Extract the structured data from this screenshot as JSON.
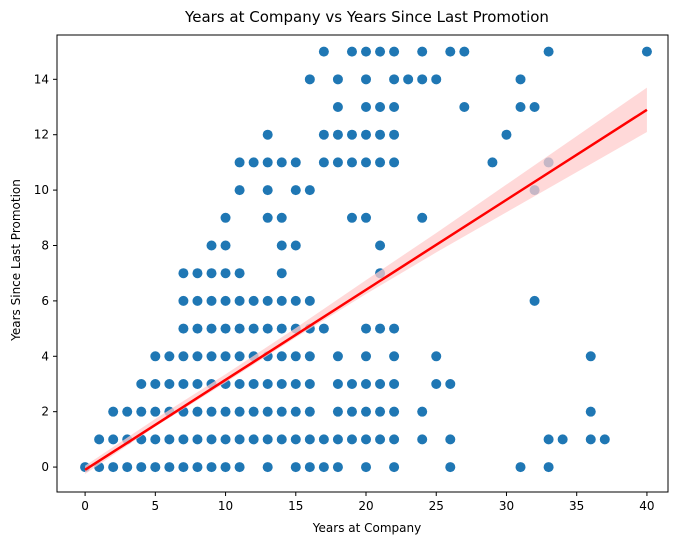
{
  "chart_data": {
    "type": "scatter",
    "title": "Years at Company vs Years Since Last Promotion",
    "xlabel": "Years at Company",
    "ylabel": "Years Since Last Promotion",
    "xlim": [
      -2,
      41.5
    ],
    "ylim": [
      -0.9,
      15.6
    ],
    "xticks": [
      0,
      5,
      10,
      15,
      20,
      25,
      30,
      35,
      40
    ],
    "yticks": [
      0,
      2,
      4,
      6,
      8,
      10,
      12,
      14
    ],
    "grid": false,
    "colors": {
      "points": "#1f77b4",
      "regression_line": "#ff0000",
      "confidence_band": "#ffcccc"
    },
    "points": [
      [
        0,
        0
      ],
      [
        1,
        0
      ],
      [
        2,
        0
      ],
      [
        3,
        0
      ],
      [
        4,
        0
      ],
      [
        5,
        0
      ],
      [
        6,
        0
      ],
      [
        7,
        0
      ],
      [
        8,
        0
      ],
      [
        9,
        0
      ],
      [
        10,
        0
      ],
      [
        11,
        0
      ],
      [
        13,
        0
      ],
      [
        15,
        0
      ],
      [
        16,
        0
      ],
      [
        17,
        0
      ],
      [
        18,
        0
      ],
      [
        20,
        0
      ],
      [
        22,
        0
      ],
      [
        26,
        0
      ],
      [
        31,
        0
      ],
      [
        33,
        0
      ],
      [
        1,
        1
      ],
      [
        2,
        1
      ],
      [
        3,
        1
      ],
      [
        4,
        1
      ],
      [
        5,
        1
      ],
      [
        6,
        1
      ],
      [
        7,
        1
      ],
      [
        8,
        1
      ],
      [
        9,
        1
      ],
      [
        10,
        1
      ],
      [
        11,
        1
      ],
      [
        12,
        1
      ],
      [
        13,
        1
      ],
      [
        14,
        1
      ],
      [
        15,
        1
      ],
      [
        16,
        1
      ],
      [
        17,
        1
      ],
      [
        18,
        1
      ],
      [
        19,
        1
      ],
      [
        20,
        1
      ],
      [
        21,
        1
      ],
      [
        22,
        1
      ],
      [
        24,
        1
      ],
      [
        26,
        1
      ],
      [
        33,
        1
      ],
      [
        34,
        1
      ],
      [
        36,
        1
      ],
      [
        37,
        1
      ],
      [
        2,
        2
      ],
      [
        3,
        2
      ],
      [
        4,
        2
      ],
      [
        5,
        2
      ],
      [
        6,
        2
      ],
      [
        7,
        2
      ],
      [
        8,
        2
      ],
      [
        9,
        2
      ],
      [
        10,
        2
      ],
      [
        11,
        2
      ],
      [
        12,
        2
      ],
      [
        13,
        2
      ],
      [
        14,
        2
      ],
      [
        15,
        2
      ],
      [
        16,
        2
      ],
      [
        18,
        2
      ],
      [
        19,
        2
      ],
      [
        20,
        2
      ],
      [
        21,
        2
      ],
      [
        22,
        2
      ],
      [
        24,
        2
      ],
      [
        36,
        2
      ],
      [
        4,
        3
      ],
      [
        5,
        3
      ],
      [
        6,
        3
      ],
      [
        7,
        3
      ],
      [
        8,
        3
      ],
      [
        9,
        3
      ],
      [
        10,
        3
      ],
      [
        11,
        3
      ],
      [
        12,
        3
      ],
      [
        13,
        3
      ],
      [
        14,
        3
      ],
      [
        15,
        3
      ],
      [
        16,
        3
      ],
      [
        18,
        3
      ],
      [
        19,
        3
      ],
      [
        20,
        3
      ],
      [
        21,
        3
      ],
      [
        22,
        3
      ],
      [
        25,
        3
      ],
      [
        26,
        3
      ],
      [
        5,
        4
      ],
      [
        6,
        4
      ],
      [
        7,
        4
      ],
      [
        8,
        4
      ],
      [
        9,
        4
      ],
      [
        10,
        4
      ],
      [
        11,
        4
      ],
      [
        12,
        4
      ],
      [
        13,
        4
      ],
      [
        14,
        4
      ],
      [
        15,
        4
      ],
      [
        16,
        4
      ],
      [
        18,
        4
      ],
      [
        20,
        4
      ],
      [
        22,
        4
      ],
      [
        25,
        4
      ],
      [
        36,
        4
      ],
      [
        7,
        5
      ],
      [
        8,
        5
      ],
      [
        9,
        5
      ],
      [
        10,
        5
      ],
      [
        11,
        5
      ],
      [
        12,
        5
      ],
      [
        13,
        5
      ],
      [
        14,
        5
      ],
      [
        15,
        5
      ],
      [
        16,
        5
      ],
      [
        17,
        5
      ],
      [
        20,
        5
      ],
      [
        21,
        5
      ],
      [
        22,
        5
      ],
      [
        7,
        6
      ],
      [
        8,
        6
      ],
      [
        9,
        6
      ],
      [
        10,
        6
      ],
      [
        11,
        6
      ],
      [
        12,
        6
      ],
      [
        13,
        6
      ],
      [
        14,
        6
      ],
      [
        15,
        6
      ],
      [
        16,
        6
      ],
      [
        32,
        6
      ],
      [
        7,
        7
      ],
      [
        8,
        7
      ],
      [
        9,
        7
      ],
      [
        10,
        7
      ],
      [
        11,
        7
      ],
      [
        14,
        7
      ],
      [
        21,
        7
      ],
      [
        9,
        8
      ],
      [
        10,
        8
      ],
      [
        14,
        8
      ],
      [
        15,
        8
      ],
      [
        21,
        8
      ],
      [
        10,
        9
      ],
      [
        13,
        9
      ],
      [
        14,
        9
      ],
      [
        19,
        9
      ],
      [
        20,
        9
      ],
      [
        24,
        9
      ],
      [
        11,
        10
      ],
      [
        13,
        10
      ],
      [
        15,
        10
      ],
      [
        16,
        10
      ],
      [
        32,
        10
      ],
      [
        11,
        11
      ],
      [
        12,
        11
      ],
      [
        13,
        11
      ],
      [
        14,
        11
      ],
      [
        15,
        11
      ],
      [
        17,
        11
      ],
      [
        18,
        11
      ],
      [
        19,
        11
      ],
      [
        20,
        11
      ],
      [
        21,
        11
      ],
      [
        22,
        11
      ],
      [
        29,
        11
      ],
      [
        33,
        11
      ],
      [
        13,
        12
      ],
      [
        17,
        12
      ],
      [
        18,
        12
      ],
      [
        19,
        12
      ],
      [
        20,
        12
      ],
      [
        21,
        12
      ],
      [
        22,
        12
      ],
      [
        30,
        12
      ],
      [
        18,
        13
      ],
      [
        20,
        13
      ],
      [
        21,
        13
      ],
      [
        22,
        13
      ],
      [
        27,
        13
      ],
      [
        31,
        13
      ],
      [
        32,
        13
      ],
      [
        16,
        14
      ],
      [
        18,
        14
      ],
      [
        20,
        14
      ],
      [
        22,
        14
      ],
      [
        23,
        14
      ],
      [
        24,
        14
      ],
      [
        25,
        14
      ],
      [
        31,
        14
      ],
      [
        17,
        15
      ],
      [
        19,
        15
      ],
      [
        20,
        15
      ],
      [
        21,
        15
      ],
      [
        22,
        15
      ],
      [
        24,
        15
      ],
      [
        26,
        15
      ],
      [
        27,
        15
      ],
      [
        33,
        15
      ],
      [
        40,
        15
      ]
    ],
    "regression": {
      "x": [
        0,
        40
      ],
      "y": [
        -0.1,
        12.9
      ]
    },
    "confidence_band": {
      "x": [
        0,
        5,
        10,
        15,
        20,
        25,
        30,
        35,
        40
      ],
      "lower": [
        -0.25,
        1.46,
        3.05,
        4.68,
        6.25,
        7.75,
        9.2,
        10.65,
        12.1
      ],
      "upper": [
        0.05,
        1.74,
        3.35,
        5.02,
        6.75,
        8.45,
        10.2,
        11.95,
        13.7
      ]
    }
  }
}
